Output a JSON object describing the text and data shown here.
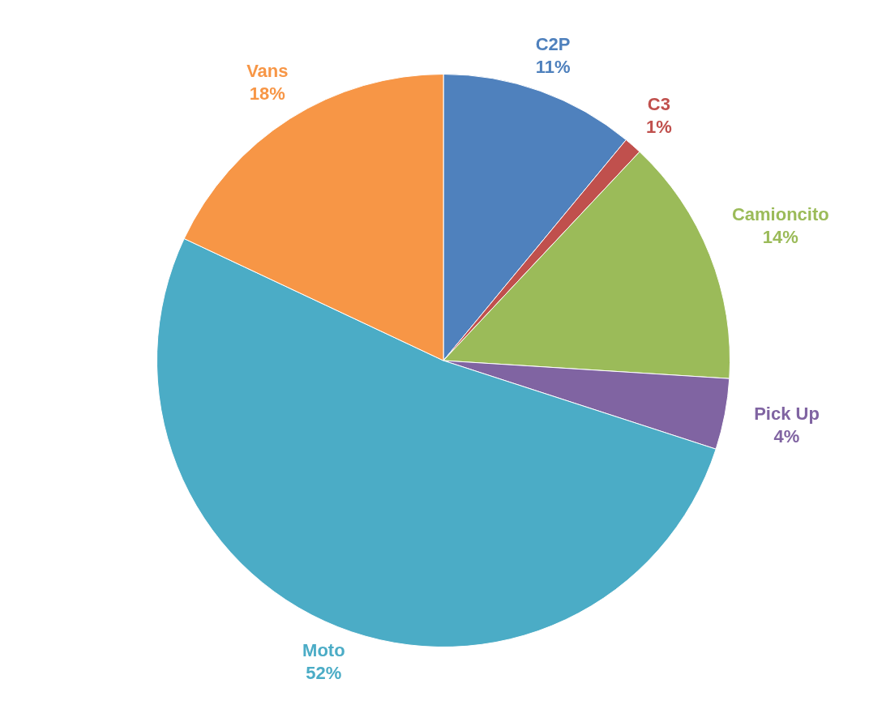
{
  "chart_data": {
    "type": "pie",
    "categories": [
      "C2P",
      "C3",
      "Camioncito",
      "Pick Up",
      "Moto",
      "Vans"
    ],
    "values": [
      11,
      1,
      14,
      4,
      52,
      18
    ],
    "value_labels": [
      "11%",
      "1%",
      "14%",
      "4%",
      "52%",
      "18%"
    ],
    "colors": [
      "#4f81bd",
      "#c0504d",
      "#9bbb59",
      "#8064a2",
      "#4bacc6",
      "#f79646"
    ],
    "legend": false
  }
}
